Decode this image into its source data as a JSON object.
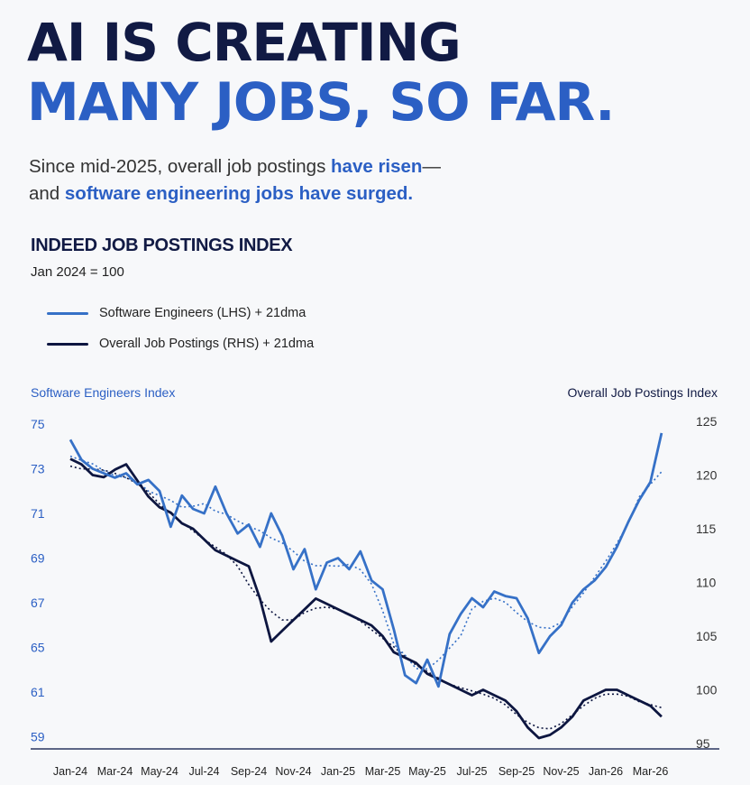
{
  "headline": {
    "line1": "AI IS CREATING",
    "line2": "MANY JOBS, SO FAR."
  },
  "subtitle": {
    "part1": "Since mid-2025, overall job postings ",
    "highlight1": "have risen",
    "part2": "—",
    "part3": "and ",
    "highlight2": "software engineering jobs have surged."
  },
  "colors": {
    "navy": "#111a44",
    "blue": "#2b5fc4",
    "softwareLine": "#3671c7",
    "overallLine": "#0d1640"
  },
  "chart_data": {
    "type": "line",
    "title": "INDEED JOB POSTINGS INDEX",
    "subtitle": "Jan 2024 = 100",
    "legend": [
      {
        "label": "Software Engineers (LHS) + 21dma",
        "color": "#3671c7"
      },
      {
        "label": "Overall Job Postings (RHS) + 21dma",
        "color": "#0d1640"
      }
    ],
    "legend_position": "top-left",
    "y_left": {
      "label": "Software Engineers Index",
      "ticks": [
        "75",
        "73",
        "71",
        "69",
        "67",
        "65",
        "61",
        "59"
      ]
    },
    "y_right": {
      "label": "Overall Job Postings Index",
      "ticks": [
        "125",
        "120",
        "115",
        "110",
        "105",
        "100",
        "95"
      ],
      "range": [
        95,
        125
      ]
    },
    "x_ticks": [
      "Jan-24",
      "Mar-24",
      "May-24",
      "Jul-24",
      "Sep-24",
      "Nov-24",
      "Jan-25",
      "Mar-25",
      "May-25",
      "Jul-25",
      "Sep-25",
      "Nov-25",
      "Jan-26",
      "Mar-26"
    ],
    "x": [
      0,
      0.25,
      0.5,
      0.75,
      1,
      1.25,
      1.5,
      1.75,
      2,
      2.25,
      2.5,
      2.75,
      3,
      3.25,
      3.5,
      3.75,
      4,
      4.25,
      4.5,
      4.75,
      5,
      5.25,
      5.5,
      5.75,
      6,
      6.25,
      6.5,
      6.75,
      7,
      7.25,
      7.5,
      7.75,
      8,
      8.25,
      8.5,
      8.75,
      9,
      9.25,
      9.5,
      9.75,
      10,
      10.25,
      10.5,
      10.75,
      11,
      11.25,
      11.5,
      11.75,
      12,
      12.25,
      12.5,
      12.75,
      13,
      13.25
    ],
    "series": [
      {
        "name": "Software Engineers (LHS)",
        "axis": "left",
        "values": [
          74.3,
          73.4,
          73.0,
          72.8,
          72.6,
          72.8,
          72.3,
          72.5,
          72.0,
          70.4,
          71.8,
          71.2,
          71.0,
          72.2,
          71.0,
          70.1,
          70.5,
          69.5,
          71.0,
          70.0,
          68.5,
          69.4,
          67.6,
          68.8,
          69.0,
          68.5,
          69.3,
          68.0,
          67.6,
          65.8,
          62.5,
          61.8,
          63.9,
          61.5,
          65.6,
          66.5,
          67.2,
          66.8,
          67.5,
          67.3,
          67.2,
          66.3,
          64.5,
          65.5,
          66.0,
          67.0,
          67.6,
          68.0,
          68.6,
          69.5,
          70.6,
          71.6,
          72.4,
          74.6
        ]
      },
      {
        "name": "Overall Job Postings (RHS)",
        "axis": "right",
        "values": [
          121.5,
          121.0,
          120.0,
          119.8,
          120.5,
          121.0,
          119.5,
          118.0,
          117.0,
          116.5,
          115.5,
          115.0,
          114.0,
          113.0,
          112.5,
          112.0,
          111.5,
          108.5,
          104.5,
          105.5,
          106.5,
          107.5,
          108.5,
          108.0,
          107.5,
          107.0,
          106.5,
          106.0,
          105.0,
          103.5,
          103.0,
          102.5,
          101.5,
          101.0,
          100.5,
          100.0,
          99.5,
          100.0,
          99.5,
          99.0,
          98.0,
          96.5,
          95.5,
          95.8,
          96.5,
          97.5,
          99.0,
          99.5,
          100.0,
          100.0,
          99.5,
          99.0,
          98.5,
          97.5
        ]
      }
    ]
  }
}
